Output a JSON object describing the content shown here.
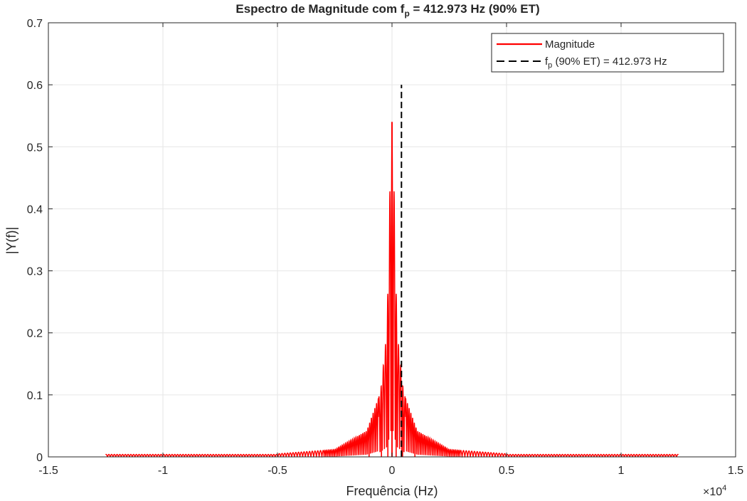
{
  "chart_data": {
    "type": "line",
    "title_main": "Espectro de Magnitude com f",
    "title_sub": "p",
    "title_rest": " = 412.973 Hz (90% ET)",
    "xlabel": "Frequência (Hz)",
    "ylabel": "|Y(f)|",
    "x_multiplier": "×10",
    "x_multiplier_exp": "4",
    "xlim": [
      -1.5,
      1.5
    ],
    "ylim": [
      0,
      0.7
    ],
    "xticks": [
      -1.5,
      -1,
      -0.5,
      0,
      0.5,
      1,
      1.5
    ],
    "xtick_labels": [
      "-1.5",
      "-1",
      "-0.5",
      "0",
      "0.5",
      "1",
      "1.5"
    ],
    "yticks": [
      0,
      0.1,
      0.2,
      0.3,
      0.4,
      0.5,
      0.6,
      0.7
    ],
    "ytick_labels": [
      "0",
      "0.1",
      "0.2",
      "0.3",
      "0.4",
      "0.5",
      "0.6",
      "0.7"
    ],
    "grid": true,
    "legend_position": "top-right",
    "legend": {
      "magnitude": "Magnitude",
      "fp_main": "f",
      "fp_sub": "p",
      "fp_rest": " (90% ET) = 412.973 Hz"
    },
    "colors": {
      "magnitude": "#ff0000",
      "fp_line": "#000000",
      "grid": "#e6e6e6",
      "axes": "#262626"
    },
    "series": [
      {
        "name": "Magnitude",
        "x_range_scaled": [
          -1.25,
          1.25
        ],
        "peaks": [
          {
            "x": -0.0004,
            "y": 0.54
          },
          {
            "x": 0.0004,
            "y": 0.54
          },
          {
            "x": -0.018,
            "y": 0.205
          },
          {
            "x": 0.018,
            "y": 0.205
          },
          {
            "x": -0.046,
            "y": 0.105
          },
          {
            "x": 0.046,
            "y": 0.105
          },
          {
            "x": -0.1,
            "y": 0.042
          },
          {
            "x": 0.1,
            "y": 0.042
          }
        ]
      },
      {
        "name": "fp (90% ET) = 412.973 Hz",
        "x": 0.0412973,
        "y_range": [
          0,
          0.6
        ]
      }
    ]
  }
}
